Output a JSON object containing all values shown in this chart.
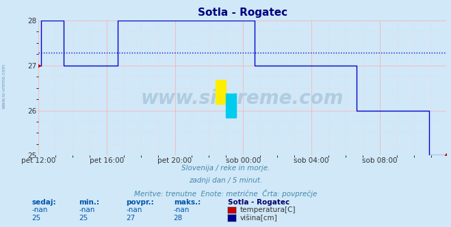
{
  "title": "Sotla - Rogatec",
  "title_color": "#000080",
  "background_color": "#d0e8f8",
  "plot_bg_color": "#d0e8f8",
  "ylim": [
    25,
    28
  ],
  "yticks": [
    25,
    26,
    27,
    28
  ],
  "xlabel_ticks": [
    "pet 12:00",
    "pet 16:00",
    "pet 20:00",
    "sob 00:00",
    "sob 04:00",
    "sob 08:00"
  ],
  "avg_line_value": 27.29,
  "avg_line_color": "#0000cc",
  "line_color": "#0000cc",
  "red_dot_color": "#cc0000",
  "watermark_text": "www.si-vreme.com",
  "watermark_color": "#b0cce0",
  "subtitle_lines": [
    "Slovenija / reke in morje.",
    "zadnji dan / 5 minut.",
    "Meritve: trenutne  Enote: metrične  Črta: povprečje"
  ],
  "subtitle_color": "#4488aa",
  "legend_station": "Sotla - Rogatec",
  "legend_headers": [
    "sedaj:",
    "min.:",
    "povpr.:",
    "maks.:"
  ],
  "legend_row1": [
    "-nan",
    "-nan",
    "-nan",
    "-nan"
  ],
  "legend_row2": [
    "25",
    "25",
    "27",
    "28"
  ],
  "legend_color1": "#cc0000",
  "legend_color2": "#000099",
  "legend_label1": "temperatura[C]",
  "legend_label2": "višina[cm]",
  "left_label": "www.si-vreme.com",
  "n_points": 288,
  "vysina_data": [
    27,
    27,
    28,
    28,
    28,
    28,
    28,
    28,
    28,
    28,
    28,
    28,
    28,
    28,
    28,
    28,
    28,
    28,
    27,
    27,
    27,
    27,
    27,
    27,
    27,
    27,
    27,
    27,
    27,
    27,
    27,
    27,
    27,
    27,
    27,
    27,
    27,
    27,
    27,
    27,
    27,
    27,
    27,
    27,
    27,
    27,
    27,
    27,
    27,
    27,
    27,
    27,
    27,
    27,
    27,
    27,
    28,
    28,
    28,
    28,
    28,
    28,
    28,
    28,
    28,
    28,
    28,
    28,
    28,
    28,
    28,
    28,
    28,
    28,
    28,
    28,
    28,
    28,
    28,
    28,
    28,
    28,
    28,
    28,
    28,
    28,
    28,
    28,
    28,
    28,
    28,
    28,
    28,
    28,
    28,
    28,
    28,
    28,
    28,
    28,
    28,
    28,
    28,
    28,
    28,
    28,
    28,
    28,
    28,
    28,
    28,
    28,
    28,
    28,
    28,
    28,
    28,
    28,
    28,
    28,
    28,
    28,
    28,
    28,
    28,
    28,
    28,
    28,
    28,
    28,
    28,
    28,
    28,
    28,
    28,
    28,
    28,
    28,
    28,
    28,
    28,
    28,
    28,
    28,
    28,
    28,
    28,
    28,
    28,
    28,
    28,
    28,
    27,
    27,
    27,
    27,
    27,
    27,
    27,
    27,
    27,
    27,
    27,
    27,
    27,
    27,
    27,
    27,
    27,
    27,
    27,
    27,
    27,
    27,
    27,
    27,
    27,
    27,
    27,
    27,
    27,
    27,
    27,
    27,
    27,
    27,
    27,
    27,
    27,
    27,
    27,
    27,
    27,
    27,
    27,
    27,
    27,
    27,
    27,
    27,
    27,
    27,
    27,
    27,
    27,
    27,
    27,
    27,
    27,
    27,
    27,
    27,
    27,
    27,
    27,
    27,
    27,
    27,
    27,
    27,
    27,
    27,
    27,
    27,
    26,
    26,
    26,
    26,
    26,
    26,
    26,
    26,
    26,
    26,
    26,
    26,
    26,
    26,
    26,
    26,
    26,
    26,
    26,
    26,
    26,
    26,
    26,
    26,
    26,
    26,
    26,
    26,
    26,
    26,
    26,
    26,
    26,
    26,
    26,
    26,
    26,
    26,
    26,
    26,
    26,
    26,
    26,
    26,
    26,
    26,
    26,
    26,
    26,
    26,
    26,
    25,
    25,
    25,
    25,
    25,
    25,
    25,
    25,
    25,
    25,
    25,
    25,
    25
  ]
}
